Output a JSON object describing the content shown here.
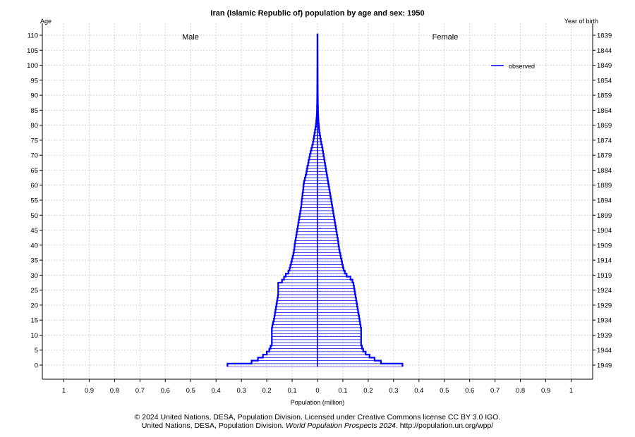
{
  "chart_data": {
    "type": "bar",
    "title": "Iran (Islamic Republic of) population by age and sex: 1950",
    "left_axis_title": "Age",
    "right_axis_title": "Year of birth",
    "xlabel": "Population (million)",
    "male_label": "Male",
    "female_label": "Female",
    "legend": {
      "label": "observed",
      "color": "#0000ff",
      "placement": "top-right"
    },
    "bar_color": "#0000ff",
    "xlim": [
      -1.1,
      1.1
    ],
    "x_ticks": [
      -1,
      -0.9,
      -0.8,
      -0.7,
      -0.6,
      -0.5,
      -0.4,
      -0.3,
      -0.2,
      -0.1,
      0,
      0.1,
      0.2,
      0.3,
      0.4,
      0.5,
      0.6,
      0.7,
      0.8,
      0.9,
      1
    ],
    "x_tick_labels": [
      "1",
      "0.9",
      "0.8",
      "0.7",
      "0.6",
      "0.5",
      "0.4",
      "0.3",
      "0.2",
      "0.1",
      "0",
      "0.1",
      "0.2",
      "0.3",
      "0.4",
      "0.5",
      "0.6",
      "0.7",
      "0.8",
      "0.9",
      "1"
    ],
    "ylim": [
      -4,
      113
    ],
    "age_ticks": [
      0,
      5,
      10,
      15,
      20,
      25,
      30,
      35,
      40,
      45,
      50,
      55,
      60,
      65,
      70,
      75,
      80,
      85,
      90,
      95,
      100,
      105,
      110
    ],
    "birth_year_ticks": [
      "1949",
      "1944",
      "1939",
      "1934",
      "1929",
      "1924",
      "1919",
      "1914",
      "1909",
      "1904",
      "1899",
      "1894",
      "1889",
      "1884",
      "1879",
      "1874",
      "1869",
      "1864",
      "1859",
      "1854",
      "1849",
      "1844",
      "1839"
    ],
    "grid": true,
    "ages": [
      0,
      1,
      2,
      3,
      4,
      5,
      6,
      7,
      8,
      9,
      10,
      11,
      12,
      13,
      14,
      15,
      16,
      17,
      18,
      19,
      20,
      21,
      22,
      23,
      24,
      25,
      26,
      27,
      28,
      29,
      30,
      31,
      32,
      33,
      34,
      35,
      36,
      37,
      38,
      39,
      40,
      41,
      42,
      43,
      44,
      45,
      46,
      47,
      48,
      49,
      50,
      51,
      52,
      53,
      54,
      55,
      56,
      57,
      58,
      59,
      60,
      61,
      62,
      63,
      64,
      65,
      66,
      67,
      68,
      69,
      70,
      71,
      72,
      73,
      74,
      75,
      76,
      77,
      78,
      79,
      80,
      81,
      82,
      83,
      84,
      85,
      86,
      87,
      88,
      89,
      90,
      91,
      92,
      93,
      94,
      95,
      96,
      97,
      98,
      99,
      100,
      101,
      102,
      103,
      104,
      105,
      106,
      107,
      108,
      109,
      110
    ],
    "series": [
      {
        "name": "Male",
        "values": [
          0.355,
          0.26,
          0.235,
          0.215,
          0.2,
          0.19,
          0.185,
          0.18,
          0.18,
          0.18,
          0.18,
          0.18,
          0.18,
          0.178,
          0.175,
          0.172,
          0.17,
          0.168,
          0.166,
          0.164,
          0.162,
          0.16,
          0.158,
          0.156,
          0.155,
          0.155,
          0.155,
          0.155,
          0.14,
          0.132,
          0.125,
          0.115,
          0.11,
          0.107,
          0.104,
          0.101,
          0.098,
          0.095,
          0.093,
          0.091,
          0.09,
          0.088,
          0.086,
          0.084,
          0.082,
          0.08,
          0.078,
          0.076,
          0.074,
          0.072,
          0.07,
          0.068,
          0.066,
          0.064,
          0.063,
          0.062,
          0.06,
          0.059,
          0.057,
          0.056,
          0.055,
          0.053,
          0.05,
          0.047,
          0.044,
          0.042,
          0.04,
          0.037,
          0.035,
          0.032,
          0.03,
          0.027,
          0.024,
          0.021,
          0.018,
          0.016,
          0.014,
          0.012,
          0.01,
          0.008,
          0.006,
          0.005,
          0.004,
          0.003,
          0.0025,
          0.002,
          0.002,
          0.0015,
          0.0015,
          0.0012,
          0.0012,
          0.001,
          0.001,
          0.001,
          0.0008,
          0.0008,
          0.0008,
          0.0006,
          0.0006,
          0.0006,
          0.0005,
          0.0005,
          0.0005,
          0.0004,
          0.0004,
          0.0004,
          0.0003,
          0.0003,
          0.0003,
          0.0003,
          0.0003
        ]
      },
      {
        "name": "Female",
        "values": [
          0.335,
          0.25,
          0.225,
          0.205,
          0.19,
          0.18,
          0.175,
          0.172,
          0.172,
          0.172,
          0.172,
          0.172,
          0.172,
          0.17,
          0.168,
          0.166,
          0.164,
          0.162,
          0.16,
          0.158,
          0.156,
          0.154,
          0.152,
          0.15,
          0.148,
          0.146,
          0.144,
          0.142,
          0.138,
          0.13,
          0.115,
          0.108,
          0.103,
          0.1,
          0.097,
          0.095,
          0.092,
          0.09,
          0.087,
          0.085,
          0.083,
          0.082,
          0.08,
          0.078,
          0.076,
          0.074,
          0.072,
          0.07,
          0.068,
          0.066,
          0.064,
          0.062,
          0.06,
          0.058,
          0.056,
          0.054,
          0.052,
          0.05,
          0.048,
          0.046,
          0.044,
          0.042,
          0.04,
          0.038,
          0.036,
          0.034,
          0.032,
          0.03,
          0.028,
          0.026,
          0.024,
          0.022,
          0.02,
          0.018,
          0.015,
          0.013,
          0.011,
          0.009,
          0.007,
          0.006,
          0.005,
          0.004,
          0.0035,
          0.003,
          0.0025,
          0.002,
          0.002,
          0.0015,
          0.0015,
          0.0012,
          0.0012,
          0.001,
          0.001,
          0.001,
          0.0008,
          0.0008,
          0.0008,
          0.0006,
          0.0006,
          0.0006,
          0.0005,
          0.0005,
          0.0005,
          0.0004,
          0.0004,
          0.0004,
          0.0003,
          0.0003,
          0.0003,
          0.0003,
          0.0003
        ]
      }
    ]
  },
  "footer": {
    "line1": "© 2024 United Nations, DESA, Population Division. Licensed under Creative Commons license CC BY 3.0 IGO.",
    "line2_prefix": "United Nations, DESA, Population Division. ",
    "line2_italic": "World Population Prospects 2024",
    "line2_suffix": ". http://population.un.org/wpp/"
  }
}
